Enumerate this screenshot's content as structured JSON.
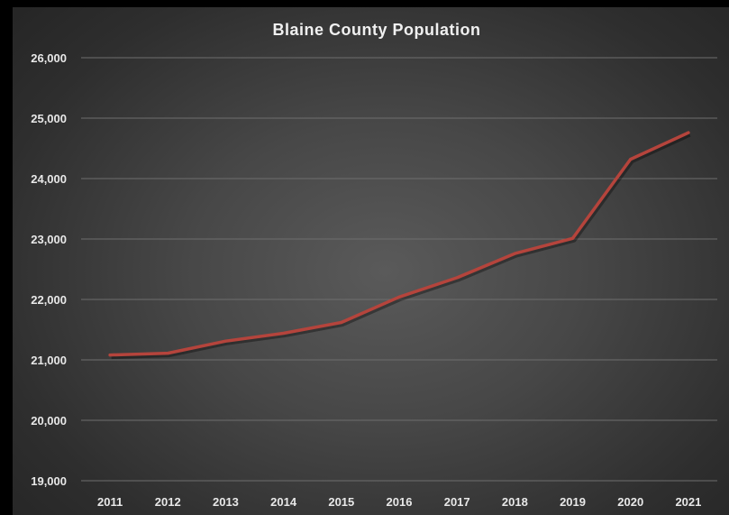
{
  "chart_data": {
    "type": "line",
    "title": "Blaine County Population",
    "xlabel": "",
    "ylabel": "",
    "x": [
      "2011",
      "2012",
      "2013",
      "2014",
      "2015",
      "2016",
      "2017",
      "2018",
      "2019",
      "2020",
      "2021"
    ],
    "series": [
      {
        "values": [
          21080,
          21110,
          21310,
          21440,
          21620,
          22040,
          22360,
          22760,
          23010,
          24320,
          24760
        ],
        "color": "#b5443c"
      }
    ],
    "ylim": [
      19000,
      26000
    ],
    "yticks": [
      "19,000",
      "20,000",
      "21,000",
      "22,000",
      "23,000",
      "24,000",
      "25,000",
      "26,000"
    ],
    "grid": true,
    "legend": "none"
  }
}
